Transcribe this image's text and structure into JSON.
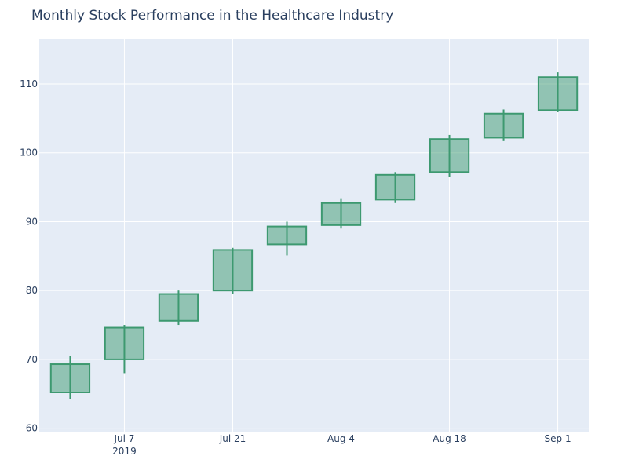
{
  "chart_data": {
    "type": "candlestick",
    "title": "Monthly Stock Performance in the Healthcare Industry",
    "xlabel": "",
    "ylabel": "",
    "ylim": [
      59.5,
      116.5
    ],
    "y_ticks": [
      60,
      70,
      80,
      90,
      100,
      110
    ],
    "x_ticks": [
      {
        "date": "2019-07-07",
        "label": "Jul 7",
        "sublabel": "2019"
      },
      {
        "date": "2019-07-21",
        "label": "Jul 21",
        "sublabel": ""
      },
      {
        "date": "2019-08-04",
        "label": "Aug 4",
        "sublabel": ""
      },
      {
        "date": "2019-08-18",
        "label": "Aug 18",
        "sublabel": ""
      },
      {
        "date": "2019-09-01",
        "label": "Sep 1",
        "sublabel": ""
      }
    ],
    "xlim": [
      "2019-06-26",
      "2019-09-05"
    ],
    "grid": true,
    "colors": {
      "increasing_line": "#3D9970",
      "increasing_fill": "rgba(61,153,112,0.5)",
      "plot_bg": "#E5ECF6",
      "grid": "#ffffff",
      "text": "#2a3f5f"
    },
    "candles": [
      {
        "date": "2019-06-30",
        "open": 65.2,
        "high": 70.5,
        "low": 64.2,
        "close": 69.3
      },
      {
        "date": "2019-07-07",
        "open": 70.0,
        "high": 75.0,
        "low": 68.0,
        "close": 74.6
      },
      {
        "date": "2019-07-14",
        "open": 75.6,
        "high": 80.0,
        "low": 75.0,
        "close": 79.5
      },
      {
        "date": "2019-07-21",
        "open": 80.0,
        "high": 86.2,
        "low": 79.5,
        "close": 85.9
      },
      {
        "date": "2019-07-28",
        "open": 86.7,
        "high": 90.0,
        "low": 85.1,
        "close": 89.3
      },
      {
        "date": "2019-08-04",
        "open": 89.5,
        "high": 93.4,
        "low": 89.0,
        "close": 92.7
      },
      {
        "date": "2019-08-11",
        "open": 93.2,
        "high": 97.2,
        "low": 92.7,
        "close": 96.8
      },
      {
        "date": "2019-08-18",
        "open": 97.2,
        "high": 102.6,
        "low": 96.5,
        "close": 102.0
      },
      {
        "date": "2019-08-25",
        "open": 102.2,
        "high": 106.3,
        "low": 101.7,
        "close": 105.7
      },
      {
        "date": "2019-09-01",
        "open": 106.2,
        "high": 111.7,
        "low": 105.9,
        "close": 111.0
      }
    ]
  }
}
